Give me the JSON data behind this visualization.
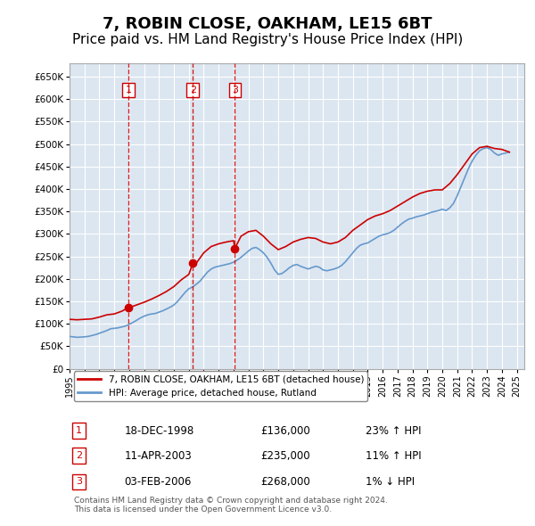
{
  "title": "7, ROBIN CLOSE, OAKHAM, LE15 6BT",
  "subtitle": "Price paid vs. HM Land Registry's House Price Index (HPI)",
  "title_fontsize": 13,
  "subtitle_fontsize": 11,
  "background_color": "#ffffff",
  "plot_bg_color": "#dce6f1",
  "grid_color": "#ffffff",
  "ylim": [
    0,
    680000
  ],
  "yticks": [
    0,
    50000,
    100000,
    150000,
    200000,
    250000,
    300000,
    350000,
    400000,
    450000,
    500000,
    550000,
    600000,
    650000
  ],
  "ytick_labels": [
    "£0",
    "£50K",
    "£100K",
    "£150K",
    "£200K",
    "£250K",
    "£300K",
    "£350K",
    "£400K",
    "£450K",
    "£500K",
    "£550K",
    "£600K",
    "£650K"
  ],
  "xlim_start": 1995.0,
  "xlim_end": 2025.5,
  "sale_dates": [
    1998.96,
    2003.27,
    2006.09
  ],
  "sale_prices": [
    136000,
    235000,
    268000
  ],
  "sale_labels": [
    "1",
    "2",
    "3"
  ],
  "sale_info": [
    {
      "num": "1",
      "date": "18-DEC-1998",
      "price": "£136,000",
      "hpi": "23% ↑ HPI"
    },
    {
      "num": "2",
      "date": "11-APR-2003",
      "price": "£235,000",
      "hpi": "11% ↑ HPI"
    },
    {
      "num": "3",
      "date": "03-FEB-2006",
      "price": "£268,000",
      "hpi": "1% ↓ HPI"
    }
  ],
  "red_line_color": "#cc0000",
  "blue_line_color": "#6699cc",
  "dashed_line_color": "#cc0000",
  "legend_label_red": "7, ROBIN CLOSE, OAKHAM, LE15 6BT (detached house)",
  "legend_label_blue": "HPI: Average price, detached house, Rutland",
  "footnote": "Contains HM Land Registry data © Crown copyright and database right 2024.\nThis data is licensed under the Open Government Licence v3.0.",
  "hpi_data_x": [
    1995.0,
    1995.25,
    1995.5,
    1995.75,
    1996.0,
    1996.25,
    1996.5,
    1996.75,
    1997.0,
    1997.25,
    1997.5,
    1997.75,
    1998.0,
    1998.25,
    1998.5,
    1998.75,
    1999.0,
    1999.25,
    1999.5,
    1999.75,
    2000.0,
    2000.25,
    2000.5,
    2000.75,
    2001.0,
    2001.25,
    2001.5,
    2001.75,
    2002.0,
    2002.25,
    2002.5,
    2002.75,
    2003.0,
    2003.25,
    2003.5,
    2003.75,
    2004.0,
    2004.25,
    2004.5,
    2004.75,
    2005.0,
    2005.25,
    2005.5,
    2005.75,
    2006.0,
    2006.25,
    2006.5,
    2006.75,
    2007.0,
    2007.25,
    2007.5,
    2007.75,
    2008.0,
    2008.25,
    2008.5,
    2008.75,
    2009.0,
    2009.25,
    2009.5,
    2009.75,
    2010.0,
    2010.25,
    2010.5,
    2010.75,
    2011.0,
    2011.25,
    2011.5,
    2011.75,
    2012.0,
    2012.25,
    2012.5,
    2012.75,
    2013.0,
    2013.25,
    2013.5,
    2013.75,
    2014.0,
    2014.25,
    2014.5,
    2014.75,
    2015.0,
    2015.25,
    2015.5,
    2015.75,
    2016.0,
    2016.25,
    2016.5,
    2016.75,
    2017.0,
    2017.25,
    2017.5,
    2017.75,
    2018.0,
    2018.25,
    2018.5,
    2018.75,
    2019.0,
    2019.25,
    2019.5,
    2019.75,
    2020.0,
    2020.25,
    2020.5,
    2020.75,
    2021.0,
    2021.25,
    2021.5,
    2021.75,
    2022.0,
    2022.25,
    2022.5,
    2022.75,
    2023.0,
    2023.25,
    2023.5,
    2023.75,
    2024.0,
    2024.25,
    2024.5
  ],
  "hpi_data_y": [
    72000,
    71000,
    70000,
    70500,
    71000,
    72000,
    74000,
    76000,
    79000,
    82000,
    85000,
    89000,
    90000,
    91000,
    93000,
    95000,
    99000,
    103000,
    108000,
    113000,
    117000,
    120000,
    122000,
    123000,
    126000,
    129000,
    133000,
    137000,
    142000,
    150000,
    160000,
    170000,
    178000,
    182000,
    188000,
    195000,
    205000,
    215000,
    222000,
    226000,
    228000,
    230000,
    232000,
    234000,
    237000,
    242000,
    248000,
    255000,
    262000,
    268000,
    270000,
    265000,
    258000,
    248000,
    235000,
    220000,
    210000,
    212000,
    218000,
    225000,
    230000,
    232000,
    228000,
    225000,
    222000,
    225000,
    228000,
    226000,
    220000,
    218000,
    220000,
    222000,
    225000,
    230000,
    238000,
    248000,
    258000,
    268000,
    275000,
    278000,
    280000,
    285000,
    290000,
    295000,
    298000,
    300000,
    303000,
    308000,
    315000,
    322000,
    328000,
    333000,
    335000,
    338000,
    340000,
    342000,
    345000,
    348000,
    350000,
    352000,
    355000,
    352000,
    358000,
    368000,
    385000,
    405000,
    425000,
    445000,
    462000,
    475000,
    485000,
    490000,
    492000,
    488000,
    480000,
    475000,
    478000,
    480000,
    482000
  ],
  "price_data_x": [
    1995.0,
    1995.5,
    1996.0,
    1996.5,
    1997.0,
    1997.5,
    1998.0,
    1998.5,
    1998.96,
    1999.0,
    1999.5,
    2000.0,
    2000.5,
    2001.0,
    2001.5,
    2002.0,
    2002.5,
    2003.0,
    2003.27,
    2003.5,
    2004.0,
    2004.5,
    2005.0,
    2005.5,
    2006.0,
    2006.09,
    2006.5,
    2007.0,
    2007.5,
    2008.0,
    2008.5,
    2009.0,
    2009.5,
    2010.0,
    2010.5,
    2011.0,
    2011.5,
    2012.0,
    2012.5,
    2013.0,
    2013.5,
    2014.0,
    2014.5,
    2015.0,
    2015.5,
    2016.0,
    2016.5,
    2017.0,
    2017.5,
    2018.0,
    2018.5,
    2019.0,
    2019.5,
    2020.0,
    2020.5,
    2021.0,
    2021.5,
    2022.0,
    2022.5,
    2023.0,
    2023.5,
    2024.0,
    2024.5
  ],
  "price_data_y": [
    110000,
    109000,
    110000,
    111000,
    115000,
    120000,
    122000,
    128000,
    136000,
    136000,
    142000,
    148000,
    155000,
    163000,
    172000,
    183000,
    198000,
    210000,
    235000,
    235000,
    258000,
    272000,
    278000,
    282000,
    285000,
    268000,
    295000,
    305000,
    308000,
    295000,
    278000,
    265000,
    272000,
    282000,
    288000,
    292000,
    290000,
    282000,
    278000,
    282000,
    292000,
    308000,
    320000,
    332000,
    340000,
    345000,
    352000,
    362000,
    372000,
    382000,
    390000,
    395000,
    398000,
    398000,
    412000,
    432000,
    455000,
    478000,
    492000,
    495000,
    490000,
    488000,
    482000
  ]
}
